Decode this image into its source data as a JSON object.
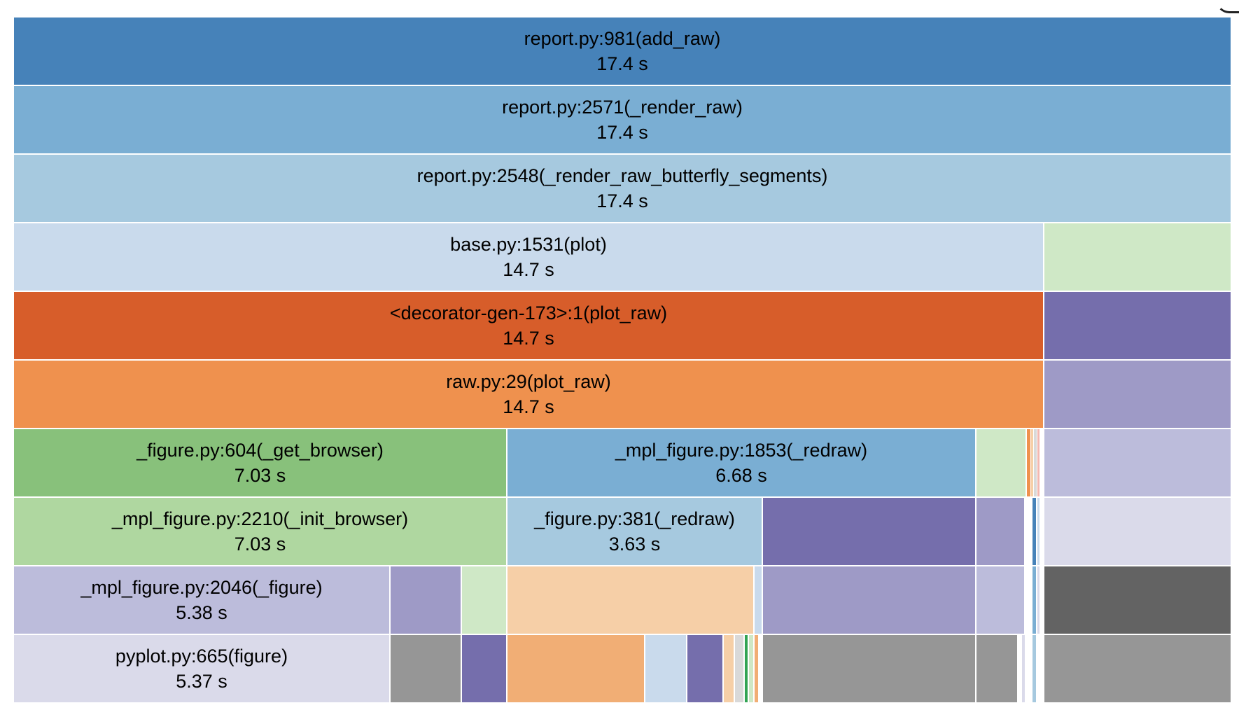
{
  "profile": {
    "total_seconds": 17.4,
    "rows": [
      [
        {
          "name": "report.py:981(add_raw)",
          "time": "17.4 s",
          "start": 0,
          "end": 17.4,
          "color": "#4682b9"
        }
      ],
      [
        {
          "name": "report.py:2571(_render_raw)",
          "time": "17.4 s",
          "start": 0,
          "end": 17.4,
          "color": "#7aaed3"
        }
      ],
      [
        {
          "name": "report.py:2548(_render_raw_butterfly_segments)",
          "time": "17.4 s",
          "start": 0,
          "end": 17.4,
          "color": "#a6c9df"
        }
      ],
      [
        {
          "name": "base.py:1531(plot)",
          "time": "14.7 s",
          "start": 0,
          "end": 14.72,
          "color": "#c9daec"
        },
        {
          "start": 14.72,
          "end": 17.4,
          "color": "#cfe8c6"
        }
      ],
      [
        {
          "name": "<decorator-gen-173>:1(plot_raw)",
          "time": "14.7 s",
          "start": 0,
          "end": 14.72,
          "color": "#d75d2a"
        },
        {
          "start": 14.72,
          "end": 17.4,
          "color": "#756eac"
        }
      ],
      [
        {
          "name": "raw.py:29(plot_raw)",
          "time": "14.7 s",
          "start": 0,
          "end": 14.72,
          "color": "#ef914e"
        },
        {
          "start": 14.72,
          "end": 17.4,
          "color": "#9e9ac6"
        }
      ],
      [
        {
          "name": "_figure.py:604(_get_browser)",
          "time": "7.03 s",
          "start": 0,
          "end": 7.05,
          "color": "#88c17b"
        },
        {
          "name": "_mpl_figure.py:1853(_redraw)",
          "time": "6.68 s",
          "start": 7.05,
          "end": 13.75,
          "color": "#7aaed3"
        },
        {
          "start": 13.75,
          "end": 14.47,
          "color": "#cfe8c6"
        },
        {
          "start": 14.47,
          "end": 14.53,
          "color": "#ef914e"
        },
        {
          "start": 14.53,
          "end": 14.57,
          "color": "#f6cfa7"
        },
        {
          "start": 14.57,
          "end": 14.62,
          "color": "#d9d9d9"
        },
        {
          "start": 14.62,
          "end": 14.66,
          "color": "#f3b7b0"
        },
        {
          "start": 14.72,
          "end": 17.4,
          "color": "#bcbcdb"
        }
      ],
      [
        {
          "name": "_mpl_figure.py:2210(_init_browser)",
          "time": "7.03 s",
          "start": 0,
          "end": 7.05,
          "color": "#afd7a0"
        },
        {
          "name": "_figure.py:381(_redraw)",
          "time": "3.63 s",
          "start": 7.05,
          "end": 10.7,
          "color": "#a6c9df"
        },
        {
          "start": 10.7,
          "end": 13.75,
          "color": "#756eac"
        },
        {
          "start": 13.75,
          "end": 14.45,
          "color": "#9e9ac6"
        },
        {
          "start": 14.55,
          "end": 14.62,
          "color": "#4682b9"
        },
        {
          "start": 14.62,
          "end": 14.66,
          "color": "#c9daec"
        },
        {
          "start": 14.72,
          "end": 17.4,
          "color": "#dadaea"
        }
      ],
      [
        {
          "name": "_mpl_figure.py:2046(_figure)",
          "time": "5.38 s",
          "start": 0,
          "end": 5.38,
          "color": "#bcbcdb"
        },
        {
          "start": 5.38,
          "end": 6.4,
          "color": "#9e9ac6"
        },
        {
          "start": 6.4,
          "end": 7.05,
          "color": "#cfe8c6"
        },
        {
          "start": 7.05,
          "end": 10.58,
          "color": "#f6cfa7"
        },
        {
          "start": 10.58,
          "end": 10.7,
          "color": "#c9daec"
        },
        {
          "start": 10.7,
          "end": 13.75,
          "color": "#9e9ac6"
        },
        {
          "start": 13.75,
          "end": 14.45,
          "color": "#bcbcdb"
        },
        {
          "start": 14.55,
          "end": 14.62,
          "color": "#7aaed3"
        },
        {
          "start": 14.62,
          "end": 14.66,
          "color": "#dadaea"
        },
        {
          "start": 14.72,
          "end": 17.4,
          "color": "#636363"
        }
      ],
      [
        {
          "name": "pyplot.py:665(figure)",
          "time": "5.37 s",
          "start": 0,
          "end": 5.38,
          "color": "#dadaea"
        },
        {
          "start": 5.38,
          "end": 6.4,
          "color": "#969696"
        },
        {
          "start": 6.4,
          "end": 7.05,
          "color": "#756eac"
        },
        {
          "start": 7.05,
          "end": 9.02,
          "color": "#f1ae75"
        },
        {
          "start": 9.02,
          "end": 9.62,
          "color": "#c9daec"
        },
        {
          "start": 9.62,
          "end": 10.14,
          "color": "#756eac"
        },
        {
          "start": 10.14,
          "end": 10.3,
          "color": "#f6cfa7"
        },
        {
          "start": 10.3,
          "end": 10.44,
          "color": "#d9d9d9"
        },
        {
          "start": 10.44,
          "end": 10.5,
          "color": "#31a353"
        },
        {
          "start": 10.5,
          "end": 10.58,
          "color": "#cfe8c6"
        },
        {
          "start": 10.58,
          "end": 10.65,
          "color": "#f1ae75"
        },
        {
          "start": 10.7,
          "end": 13.75,
          "color": "#969696"
        },
        {
          "start": 13.75,
          "end": 14.35,
          "color": "#969696"
        },
        {
          "start": 14.4,
          "end": 14.45,
          "color": "#dadaea"
        },
        {
          "start": 14.55,
          "end": 14.62,
          "color": "#a6c9df"
        },
        {
          "start": 14.72,
          "end": 17.4,
          "color": "#969696"
        }
      ]
    ]
  }
}
